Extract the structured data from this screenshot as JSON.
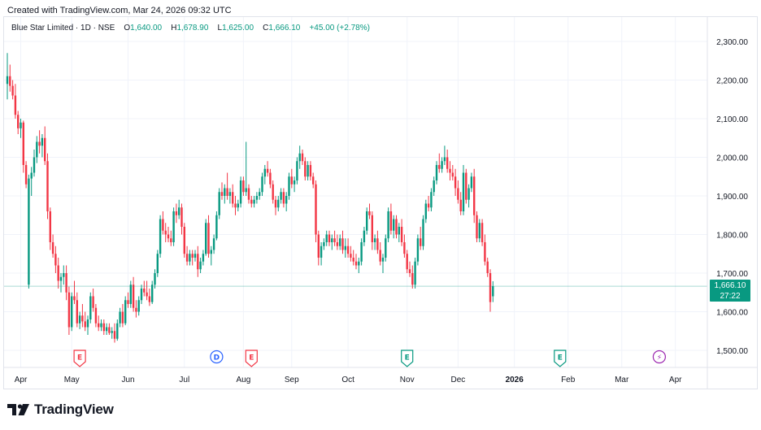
{
  "header": {
    "created_text": "Created with TradingView.com, Mar 24, 2026 09:32 UTC"
  },
  "legend": {
    "symbol": "Blue Star Limited · 1D · NSE",
    "o_key": "O",
    "o_val": "1,640.00",
    "h_key": "H",
    "h_val": "1,678.90",
    "l_key": "L",
    "l_val": "1,625.00",
    "c_key": "C",
    "c_val": "1,666.10",
    "change": "+45.00 (+2.78%)"
  },
  "price_badge": {
    "price": "1,666.10",
    "countdown": "27:22"
  },
  "logo": {
    "text": "TradingView"
  },
  "colors": {
    "up": "#089981",
    "down": "#f23645",
    "grid": "#f0f3fa",
    "event_earnings_red": "#f23645",
    "event_earnings_green": "#089981",
    "event_dividend": "#2962ff",
    "event_split": "#9c27b0"
  },
  "chart_data": {
    "type": "candlestick",
    "title": "Blue Star Limited · 1D · NSE",
    "ylim": [
      1450,
      2340
    ],
    "y_ticks": [
      1500,
      1600,
      1700,
      1800,
      1900,
      2000,
      2100,
      2200,
      2300
    ],
    "y_tick_labels": [
      "1,500.00",
      "1,600.00",
      "1,700.00",
      "1,800.00",
      "1,900.00",
      "2,000.00",
      "2,100.00",
      "2,200.00",
      "2,300.00"
    ],
    "x_ticks": [
      {
        "label": "Apr",
        "i": 5,
        "bold": false
      },
      {
        "label": "May",
        "i": 24,
        "bold": false
      },
      {
        "label": "Jun",
        "i": 45,
        "bold": false
      },
      {
        "label": "Jul",
        "i": 66,
        "bold": false
      },
      {
        "label": "Aug",
        "i": 88,
        "bold": false
      },
      {
        "label": "Sep",
        "i": 106,
        "bold": false
      },
      {
        "label": "Oct",
        "i": 127,
        "bold": false
      },
      {
        "label": "Nov",
        "i": 149,
        "bold": false
      },
      {
        "label": "Dec",
        "i": 168,
        "bold": false
      },
      {
        "label": "2026",
        "i": 189,
        "bold": true
      },
      {
        "label": "Feb",
        "i": 209,
        "bold": false
      },
      {
        "label": "Mar",
        "i": 229,
        "bold": false
      },
      {
        "label": "Apr",
        "i": 249,
        "bold": false
      }
    ],
    "events": [
      {
        "type": "earnings",
        "symbol": "E",
        "i": 27,
        "color": "red"
      },
      {
        "type": "dividend",
        "symbol": "D",
        "i": 78,
        "color": "blue"
      },
      {
        "type": "earnings",
        "symbol": "E",
        "i": 91,
        "color": "red"
      },
      {
        "type": "earnings",
        "symbol": "E",
        "i": 149,
        "color": "green"
      },
      {
        "type": "earnings",
        "symbol": "E",
        "i": 206,
        "color": "green"
      },
      {
        "type": "split",
        "symbol": "⚡",
        "i": 243,
        "color": "purple"
      }
    ],
    "last_price": 1666.1,
    "candles": [
      [
        2190,
        2270,
        2150,
        2210
      ],
      [
        2210,
        2240,
        2170,
        2185
      ],
      [
        2185,
        2200,
        2150,
        2160
      ],
      [
        2160,
        2190,
        2100,
        2110
      ],
      [
        2110,
        2120,
        2060,
        2075
      ],
      [
        2075,
        2100,
        2050,
        2090
      ],
      [
        2090,
        2095,
        1960,
        1980
      ],
      [
        1980,
        1990,
        1920,
        1930
      ],
      [
        1670,
        1955,
        1660,
        1945
      ],
      [
        1945,
        1975,
        1900,
        1960
      ],
      [
        1960,
        2020,
        1950,
        2000
      ],
      [
        2000,
        2055,
        1985,
        2040
      ],
      [
        2040,
        2070,
        2010,
        2030
      ],
      [
        2030,
        2060,
        2000,
        2050
      ],
      [
        2050,
        2080,
        1980,
        1990
      ],
      [
        1990,
        2010,
        1840,
        1860
      ],
      [
        1860,
        1870,
        1760,
        1780
      ],
      [
        1780,
        1800,
        1740,
        1750
      ],
      [
        1750,
        1770,
        1700,
        1720
      ],
      [
        1720,
        1740,
        1660,
        1680
      ],
      [
        1680,
        1700,
        1650,
        1690
      ],
      [
        1690,
        1720,
        1670,
        1700
      ],
      [
        1700,
        1720,
        1630,
        1650
      ],
      [
        1650,
        1665,
        1540,
        1560
      ],
      [
        1560,
        1650,
        1550,
        1640
      ],
      [
        1640,
        1680,
        1620,
        1630
      ],
      [
        1630,
        1650,
        1560,
        1570
      ],
      [
        1570,
        1600,
        1555,
        1590
      ],
      [
        1590,
        1620,
        1560,
        1575
      ],
      [
        1575,
        1600,
        1550,
        1560
      ],
      [
        1560,
        1590,
        1540,
        1580
      ],
      [
        1580,
        1650,
        1570,
        1640
      ],
      [
        1640,
        1660,
        1600,
        1610
      ],
      [
        1610,
        1620,
        1560,
        1570
      ],
      [
        1570,
        1590,
        1550,
        1560
      ],
      [
        1560,
        1580,
        1550,
        1570
      ],
      [
        1570,
        1580,
        1540,
        1550
      ],
      [
        1550,
        1570,
        1540,
        1560
      ],
      [
        1560,
        1570,
        1540,
        1545
      ],
      [
        1545,
        1560,
        1530,
        1550
      ],
      [
        1550,
        1570,
        1520,
        1530
      ],
      [
        1530,
        1580,
        1525,
        1570
      ],
      [
        1570,
        1610,
        1560,
        1600
      ],
      [
        1600,
        1620,
        1560,
        1570
      ],
      [
        1570,
        1640,
        1565,
        1630
      ],
      [
        1630,
        1650,
        1610,
        1620
      ],
      [
        1620,
        1680,
        1610,
        1670
      ],
      [
        1670,
        1690,
        1600,
        1610
      ],
      [
        1610,
        1630,
        1585,
        1600
      ],
      [
        1600,
        1640,
        1590,
        1630
      ],
      [
        1630,
        1670,
        1620,
        1660
      ],
      [
        1660,
        1680,
        1640,
        1650
      ],
      [
        1650,
        1680,
        1630,
        1640
      ],
      [
        1640,
        1660,
        1615,
        1625
      ],
      [
        1625,
        1680,
        1620,
        1670
      ],
      [
        1670,
        1710,
        1660,
        1700
      ],
      [
        1700,
        1760,
        1690,
        1750
      ],
      [
        1750,
        1850,
        1740,
        1840
      ],
      [
        1840,
        1860,
        1800,
        1810
      ],
      [
        1810,
        1830,
        1780,
        1800
      ],
      [
        1800,
        1820,
        1780,
        1790
      ],
      [
        1790,
        1810,
        1770,
        1780
      ],
      [
        1780,
        1870,
        1770,
        1860
      ],
      [
        1860,
        1880,
        1830,
        1850
      ],
      [
        1850,
        1890,
        1840,
        1870
      ],
      [
        1870,
        1880,
        1800,
        1820
      ],
      [
        1820,
        1830,
        1740,
        1750
      ],
      [
        1750,
        1770,
        1720,
        1730
      ],
      [
        1730,
        1760,
        1720,
        1750
      ],
      [
        1750,
        1760,
        1720,
        1740
      ],
      [
        1740,
        1760,
        1730,
        1750
      ],
      [
        1750,
        1770,
        1690,
        1710
      ],
      [
        1710,
        1740,
        1700,
        1730
      ],
      [
        1730,
        1760,
        1720,
        1750
      ],
      [
        1750,
        1840,
        1745,
        1830
      ],
      [
        1830,
        1850,
        1740,
        1750
      ],
      [
        1750,
        1770,
        1720,
        1760
      ],
      [
        1760,
        1800,
        1750,
        1790
      ],
      [
        1790,
        1860,
        1785,
        1850
      ],
      [
        1850,
        1920,
        1840,
        1910
      ],
      [
        1910,
        1935,
        1890,
        1900
      ],
      [
        1900,
        1930,
        1880,
        1920
      ],
      [
        1920,
        1960,
        1890,
        1900
      ],
      [
        1900,
        1920,
        1880,
        1910
      ],
      [
        1910,
        1930,
        1870,
        1880
      ],
      [
        1880,
        1900,
        1850,
        1870
      ],
      [
        1870,
        1890,
        1860,
        1880
      ],
      [
        1880,
        1950,
        1870,
        1940
      ],
      [
        1940,
        1950,
        1900,
        1910
      ],
      [
        1910,
        2040,
        1900,
        1920
      ],
      [
        1920,
        1930,
        1880,
        1890
      ],
      [
        1890,
        1900,
        1870,
        1880
      ],
      [
        1880,
        1900,
        1870,
        1890
      ],
      [
        1890,
        1910,
        1880,
        1900
      ],
      [
        1900,
        1920,
        1890,
        1910
      ],
      [
        1910,
        1960,
        1900,
        1950
      ],
      [
        1950,
        1980,
        1930,
        1970
      ],
      [
        1970,
        1990,
        1950,
        1960
      ],
      [
        1960,
        1970,
        1920,
        1930
      ],
      [
        1930,
        1940,
        1880,
        1890
      ],
      [
        1890,
        1900,
        1850,
        1870
      ],
      [
        1870,
        1900,
        1860,
        1890
      ],
      [
        1890,
        1920,
        1880,
        1910
      ],
      [
        1910,
        1920,
        1870,
        1880
      ],
      [
        1880,
        1910,
        1860,
        1900
      ],
      [
        1900,
        1960,
        1890,
        1950
      ],
      [
        1950,
        1970,
        1920,
        1930
      ],
      [
        1930,
        1950,
        1910,
        1940
      ],
      [
        1940,
        2000,
        1930,
        1990
      ],
      [
        1990,
        2030,
        1970,
        2010
      ],
      [
        2010,
        2020,
        1980,
        1990
      ],
      [
        1990,
        2000,
        1940,
        1950
      ],
      [
        1950,
        1990,
        1940,
        1980
      ],
      [
        1980,
        1990,
        1940,
        1950
      ],
      [
        1950,
        1960,
        1920,
        1930
      ],
      [
        1930,
        1940,
        1780,
        1800
      ],
      [
        1800,
        1810,
        1720,
        1740
      ],
      [
        1740,
        1780,
        1720,
        1770
      ],
      [
        1770,
        1790,
        1760,
        1780
      ],
      [
        1780,
        1810,
        1770,
        1800
      ],
      [
        1800,
        1810,
        1770,
        1780
      ],
      [
        1780,
        1800,
        1760,
        1790
      ],
      [
        1790,
        1810,
        1770,
        1780
      ],
      [
        1780,
        1800,
        1760,
        1770
      ],
      [
        1770,
        1800,
        1760,
        1790
      ],
      [
        1790,
        1810,
        1750,
        1760
      ],
      [
        1760,
        1790,
        1740,
        1770
      ],
      [
        1770,
        1790,
        1740,
        1750
      ],
      [
        1750,
        1770,
        1730,
        1740
      ],
      [
        1740,
        1760,
        1720,
        1730
      ],
      [
        1730,
        1750,
        1710,
        1720
      ],
      [
        1720,
        1740,
        1700,
        1730
      ],
      [
        1730,
        1790,
        1720,
        1780
      ],
      [
        1780,
        1820,
        1770,
        1810
      ],
      [
        1810,
        1870,
        1800,
        1860
      ],
      [
        1860,
        1880,
        1840,
        1850
      ],
      [
        1850,
        1860,
        1760,
        1780
      ],
      [
        1780,
        1800,
        1760,
        1790
      ],
      [
        1790,
        1810,
        1750,
        1760
      ],
      [
        1760,
        1780,
        1720,
        1730
      ],
      [
        1730,
        1750,
        1700,
        1740
      ],
      [
        1740,
        1800,
        1730,
        1790
      ],
      [
        1790,
        1870,
        1780,
        1860
      ],
      [
        1860,
        1880,
        1800,
        1810
      ],
      [
        1810,
        1850,
        1790,
        1840
      ],
      [
        1840,
        1850,
        1790,
        1800
      ],
      [
        1800,
        1830,
        1780,
        1820
      ],
      [
        1820,
        1840,
        1770,
        1780
      ],
      [
        1780,
        1800,
        1740,
        1750
      ],
      [
        1750,
        1760,
        1700,
        1710
      ],
      [
        1710,
        1730,
        1690,
        1700
      ],
      [
        1700,
        1720,
        1660,
        1670
      ],
      [
        1670,
        1740,
        1660,
        1730
      ],
      [
        1730,
        1800,
        1720,
        1790
      ],
      [
        1790,
        1820,
        1760,
        1770
      ],
      [
        1770,
        1850,
        1760,
        1840
      ],
      [
        1840,
        1890,
        1830,
        1880
      ],
      [
        1880,
        1900,
        1860,
        1870
      ],
      [
        1870,
        1920,
        1860,
        1910
      ],
      [
        1910,
        1950,
        1900,
        1940
      ],
      [
        1940,
        1990,
        1930,
        1980
      ],
      [
        1980,
        2010,
        1960,
        1970
      ],
      [
        1970,
        2000,
        1960,
        1990
      ],
      [
        1990,
        2030,
        1980,
        2000
      ],
      [
        2000,
        2020,
        1960,
        1970
      ],
      [
        1970,
        1990,
        1940,
        1960
      ],
      [
        1960,
        1980,
        1940,
        1950
      ],
      [
        1950,
        1970,
        1900,
        1920
      ],
      [
        1920,
        1940,
        1880,
        1890
      ],
      [
        1890,
        1910,
        1850,
        1860
      ],
      [
        1860,
        1980,
        1850,
        1960
      ],
      [
        1960,
        1970,
        1880,
        1890
      ],
      [
        1890,
        1930,
        1870,
        1920
      ],
      [
        1920,
        1960,
        1910,
        1950
      ],
      [
        1950,
        1970,
        1830,
        1850
      ],
      [
        1850,
        1860,
        1780,
        1790
      ],
      [
        1790,
        1840,
        1780,
        1830
      ],
      [
        1830,
        1840,
        1770,
        1780
      ],
      [
        1780,
        1800,
        1720,
        1730
      ],
      [
        1730,
        1740,
        1690,
        1700
      ],
      [
        1700,
        1710,
        1600,
        1625
      ],
      [
        1640,
        1678.9,
        1625,
        1666.1
      ]
    ]
  }
}
